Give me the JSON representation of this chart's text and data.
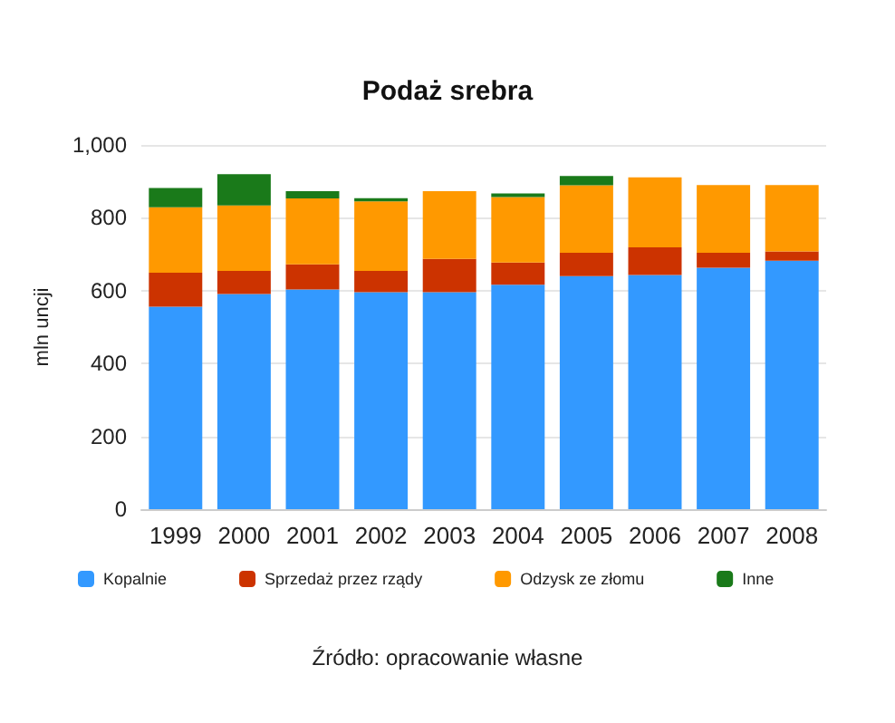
{
  "chart_data": {
    "type": "bar",
    "title": "Podaż srebra",
    "ylabel": "mln uncji",
    "stacked": true,
    "categories": [
      "1999",
      "2000",
      "2001",
      "2002",
      "2003",
      "2004",
      "2005",
      "2006",
      "2007",
      "2008"
    ],
    "series": [
      {
        "name": "Kopalnie",
        "color": "#3399ff",
        "values": [
          556,
          591,
          603,
          596,
          596,
          616,
          640,
          643,
          663,
          682
        ]
      },
      {
        "name": "Sprzedaż przez rządy",
        "color": "#cc3300",
        "values": [
          93,
          63,
          69,
          58,
          91,
          61,
          64,
          76,
          41,
          26
        ]
      },
      {
        "name": "Odzysk ze złomu",
        "color": "#ff9900",
        "values": [
          180,
          180,
          181,
          191,
          186,
          180,
          185,
          192,
          186,
          182
        ]
      },
      {
        "name": "Inne",
        "color": "#1a7a1a",
        "values": [
          53,
          86,
          20,
          9,
          null,
          10,
          26,
          null,
          null,
          null
        ]
      }
    ],
    "ylim": [
      0,
      1000
    ],
    "yticks": [
      0,
      200,
      400,
      600,
      800,
      {
        "value": 1000,
        "label": "1,000"
      }
    ],
    "grid": "y",
    "legend": "bottom",
    "annotations": [
      "Źródło: opracowanie własne"
    ]
  }
}
